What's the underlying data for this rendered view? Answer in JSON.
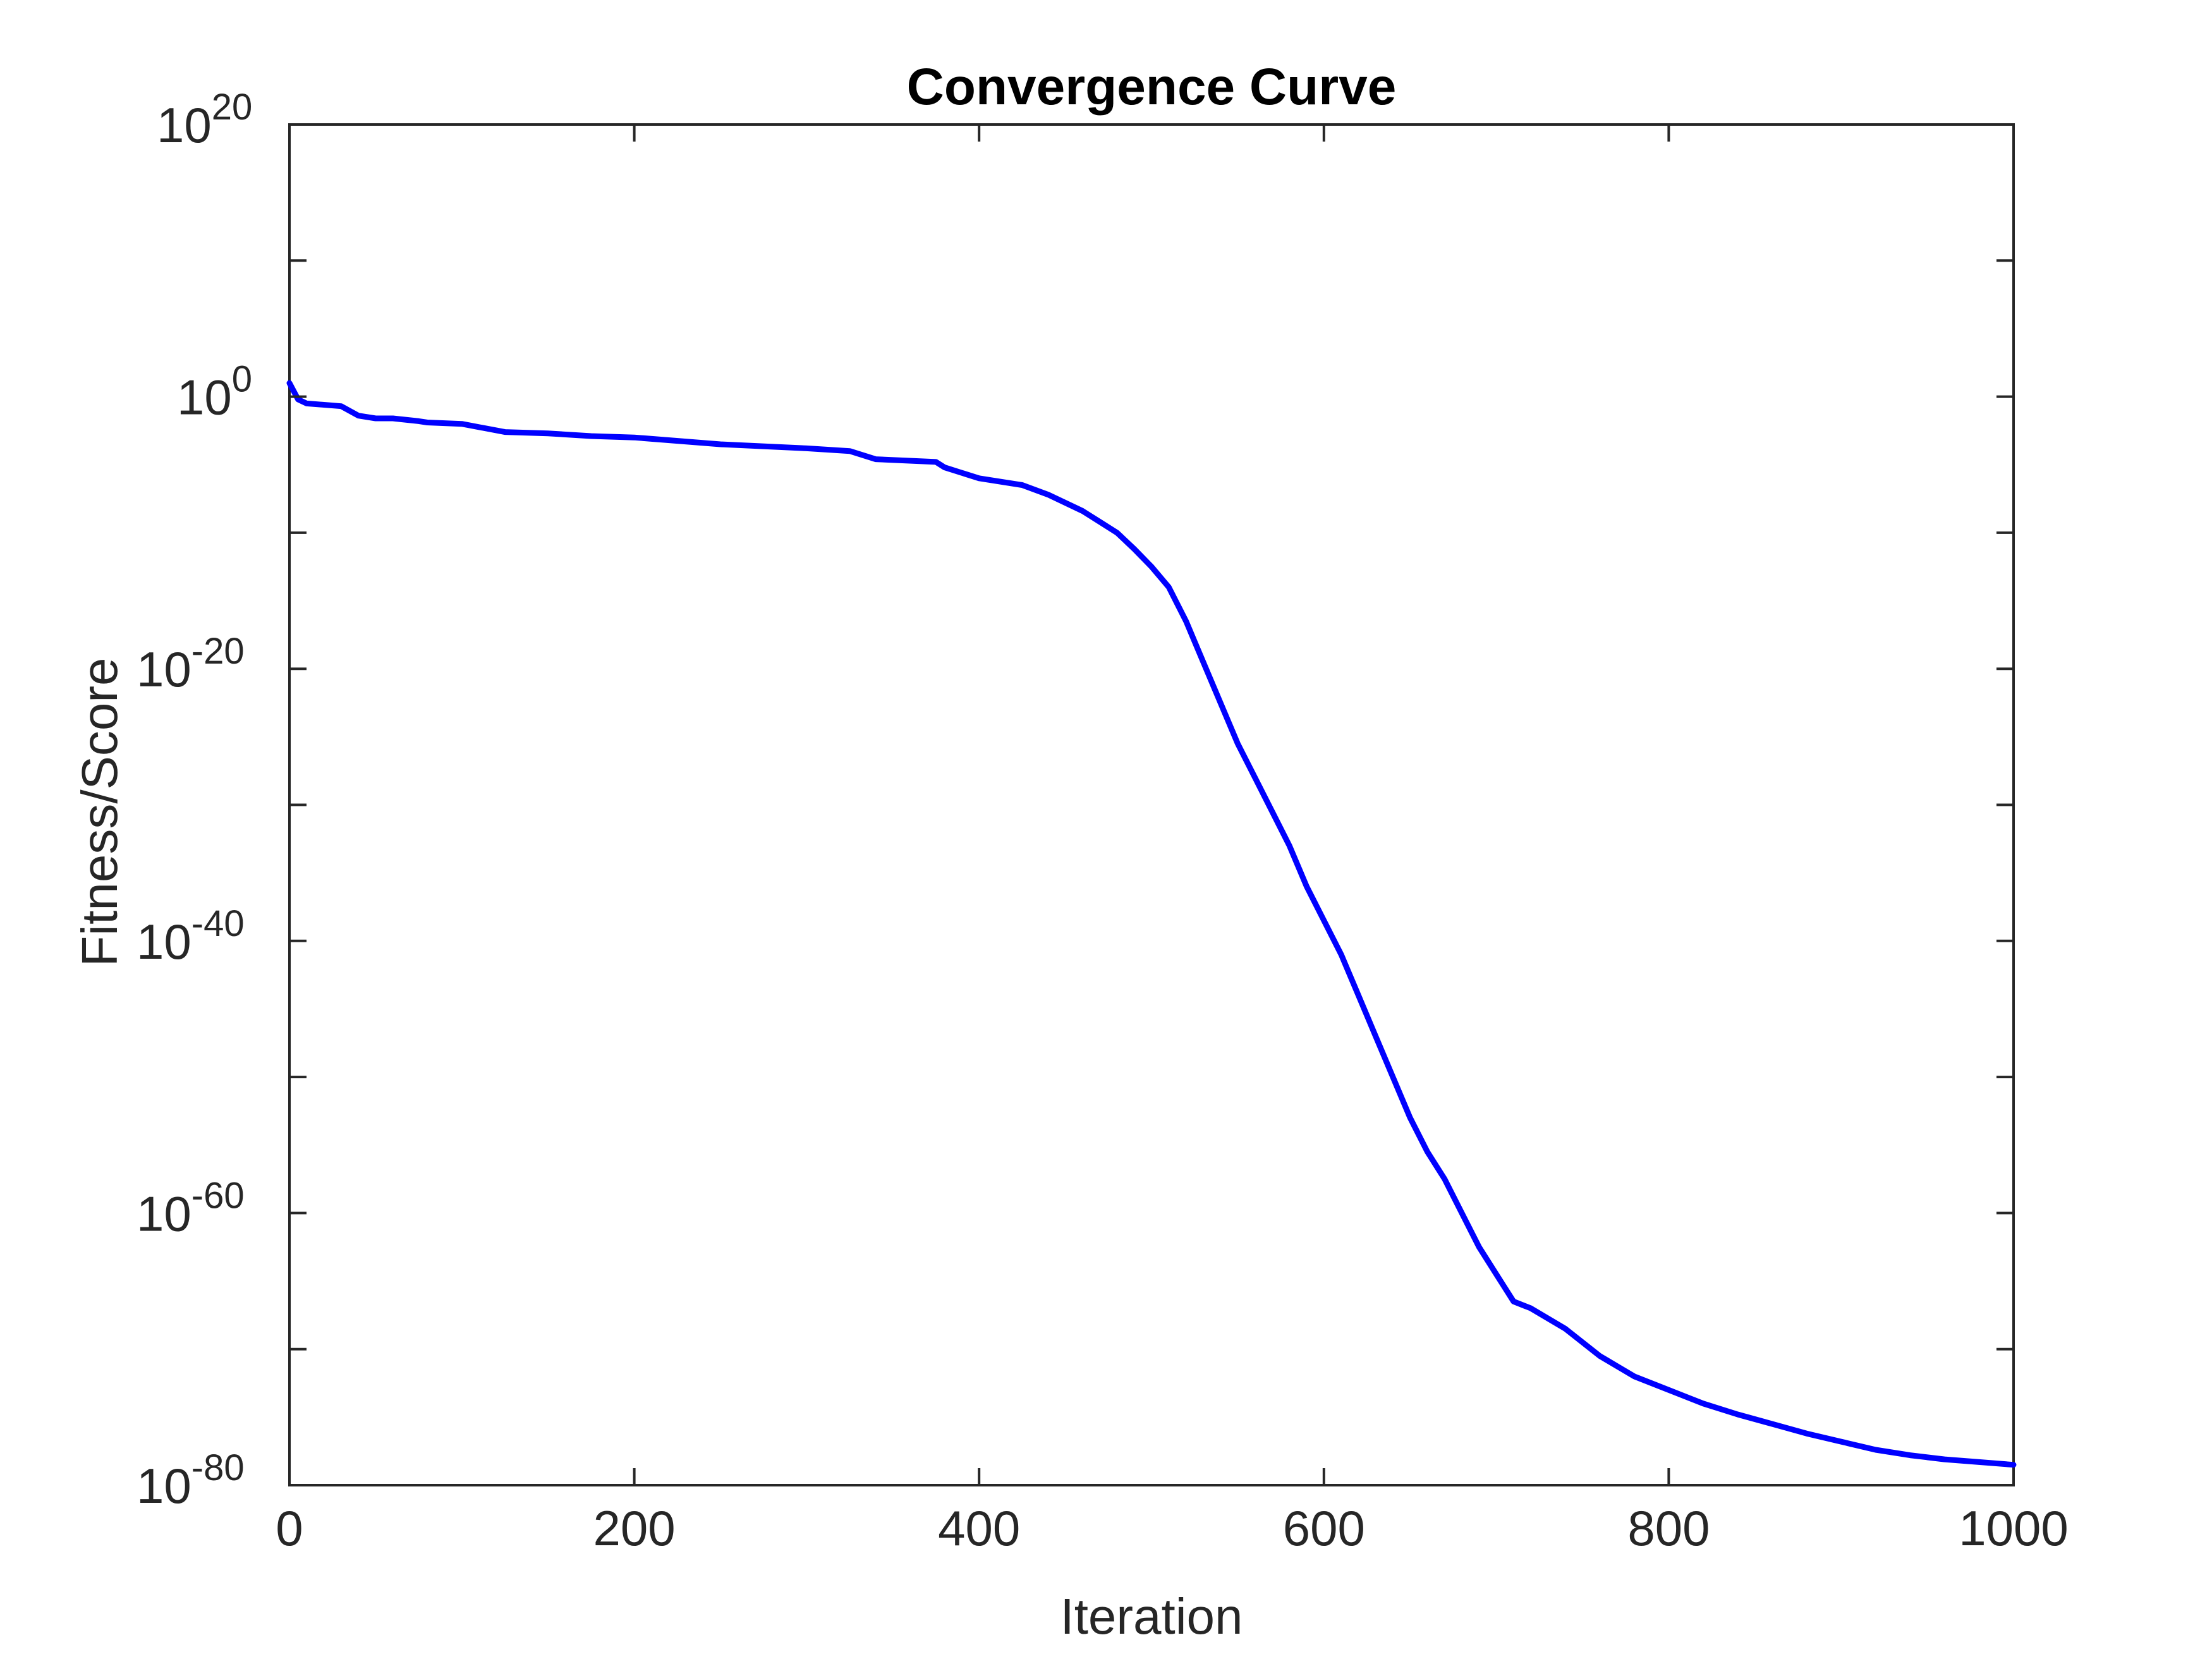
{
  "chart_data": {
    "type": "line",
    "title": "Convergence Curve",
    "xlabel": "Iteration",
    "ylabel": "Fitness/Score",
    "xlim": [
      0,
      1000
    ],
    "ylim_log10": [
      -80,
      20
    ],
    "y_scale": "log",
    "x_ticks": [
      0,
      200,
      400,
      600,
      800,
      1000
    ],
    "x_tick_labels": [
      "0",
      "200",
      "400",
      "600",
      "800",
      "1000"
    ],
    "y_tick_exponents": [
      20,
      0,
      -20,
      -40,
      -60,
      -80
    ],
    "y_tick_base": "10",
    "y_tick_labels_exp": [
      "20",
      "0",
      "-20",
      "-40",
      "-60",
      "-80"
    ],
    "grid": false,
    "box": true,
    "colors": {
      "line": "#0000ff",
      "axes": "#262626",
      "title": "#000000",
      "background": "#ffffff"
    },
    "series": [
      {
        "x": [
          0,
          5,
          10,
          20,
          30,
          40,
          50,
          60,
          75,
          80,
          100,
          125,
          150,
          175,
          200,
          250,
          300,
          325,
          340,
          375,
          380,
          400,
          425,
          440,
          460,
          470,
          480,
          490,
          500,
          510,
          520,
          530,
          540,
          550,
          560,
          570,
          580,
          590,
          600,
          610,
          620,
          630,
          640,
          650,
          660,
          670,
          680,
          690,
          700,
          710,
          720,
          740,
          760,
          780,
          800,
          820,
          840,
          860,
          880,
          900,
          920,
          940,
          960,
          980,
          1000
        ],
        "y_log10": [
          1,
          -0.2,
          -0.5,
          -0.6,
          -0.7,
          -1.4,
          -1.6,
          -1.6,
          -1.8,
          -1.9,
          -2.0,
          -2.6,
          -2.7,
          -2.9,
          -3.0,
          -3.5,
          -3.8,
          -4.0,
          -4.6,
          -4.8,
          -5.2,
          -6.0,
          -6.5,
          -7.2,
          -8.4,
          -9.2,
          -10.0,
          -11.2,
          -12.5,
          -14.0,
          -16.5,
          -19.5,
          -22.5,
          -25.5,
          -28.0,
          -30.5,
          -33.0,
          -36.0,
          -38.5,
          -41.0,
          -44.0,
          -47.0,
          -50.0,
          -53.0,
          -55.5,
          -57.5,
          -60.0,
          -62.5,
          -64.5,
          -66.5,
          -67.0,
          -68.5,
          -70.5,
          -72.0,
          -73.0,
          -74.0,
          -74.8,
          -75.5,
          -76.2,
          -76.8,
          -77.4,
          -77.8,
          -78.1,
          -78.3,
          -78.5
        ]
      }
    ]
  }
}
